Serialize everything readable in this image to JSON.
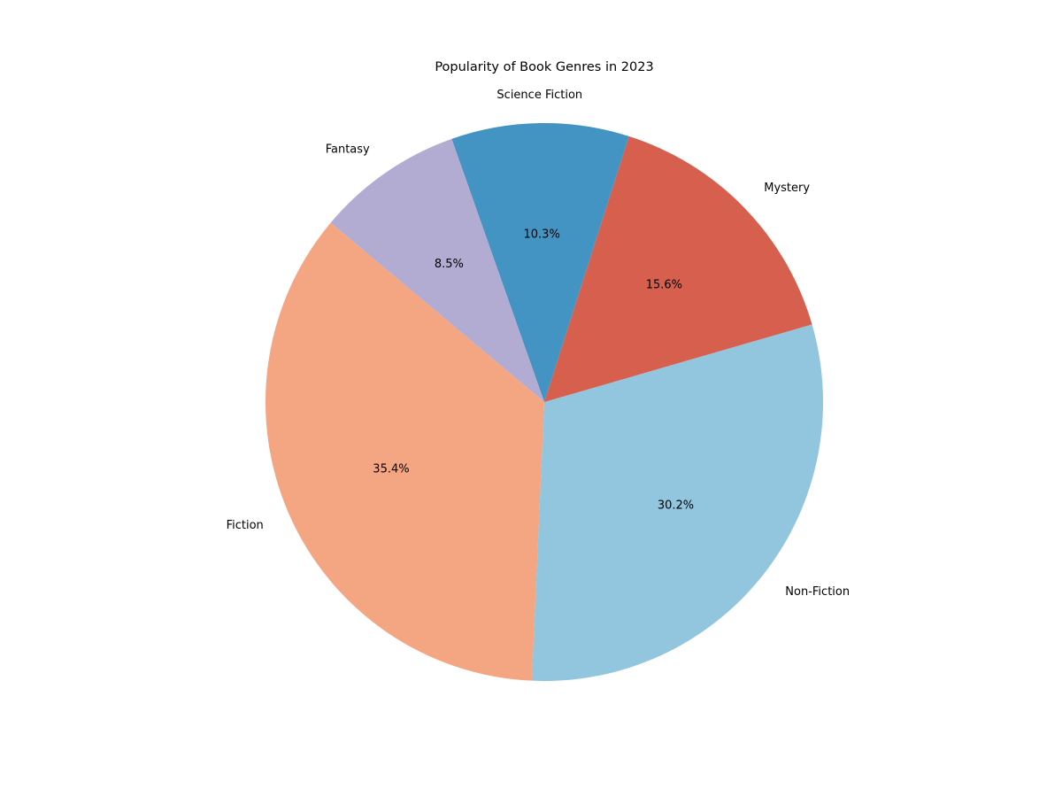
{
  "chart_data": {
    "type": "pie",
    "title": "Popularity of Book Genres in 2023",
    "categories": [
      "Fiction",
      "Non-Fiction",
      "Mystery",
      "Science Fiction",
      "Fantasy"
    ],
    "values": [
      35.4,
      30.2,
      15.6,
      10.3,
      8.5
    ],
    "value_labels": [
      "35.4%",
      "30.2%",
      "15.6%",
      "10.3%",
      "8.5%"
    ],
    "colors": [
      "#f4a582",
      "#92c5de",
      "#d6604d",
      "#4393c3",
      "#b2abd2"
    ],
    "start_angle_deg": 140,
    "direction": "counterclockwise",
    "legend": "none"
  }
}
